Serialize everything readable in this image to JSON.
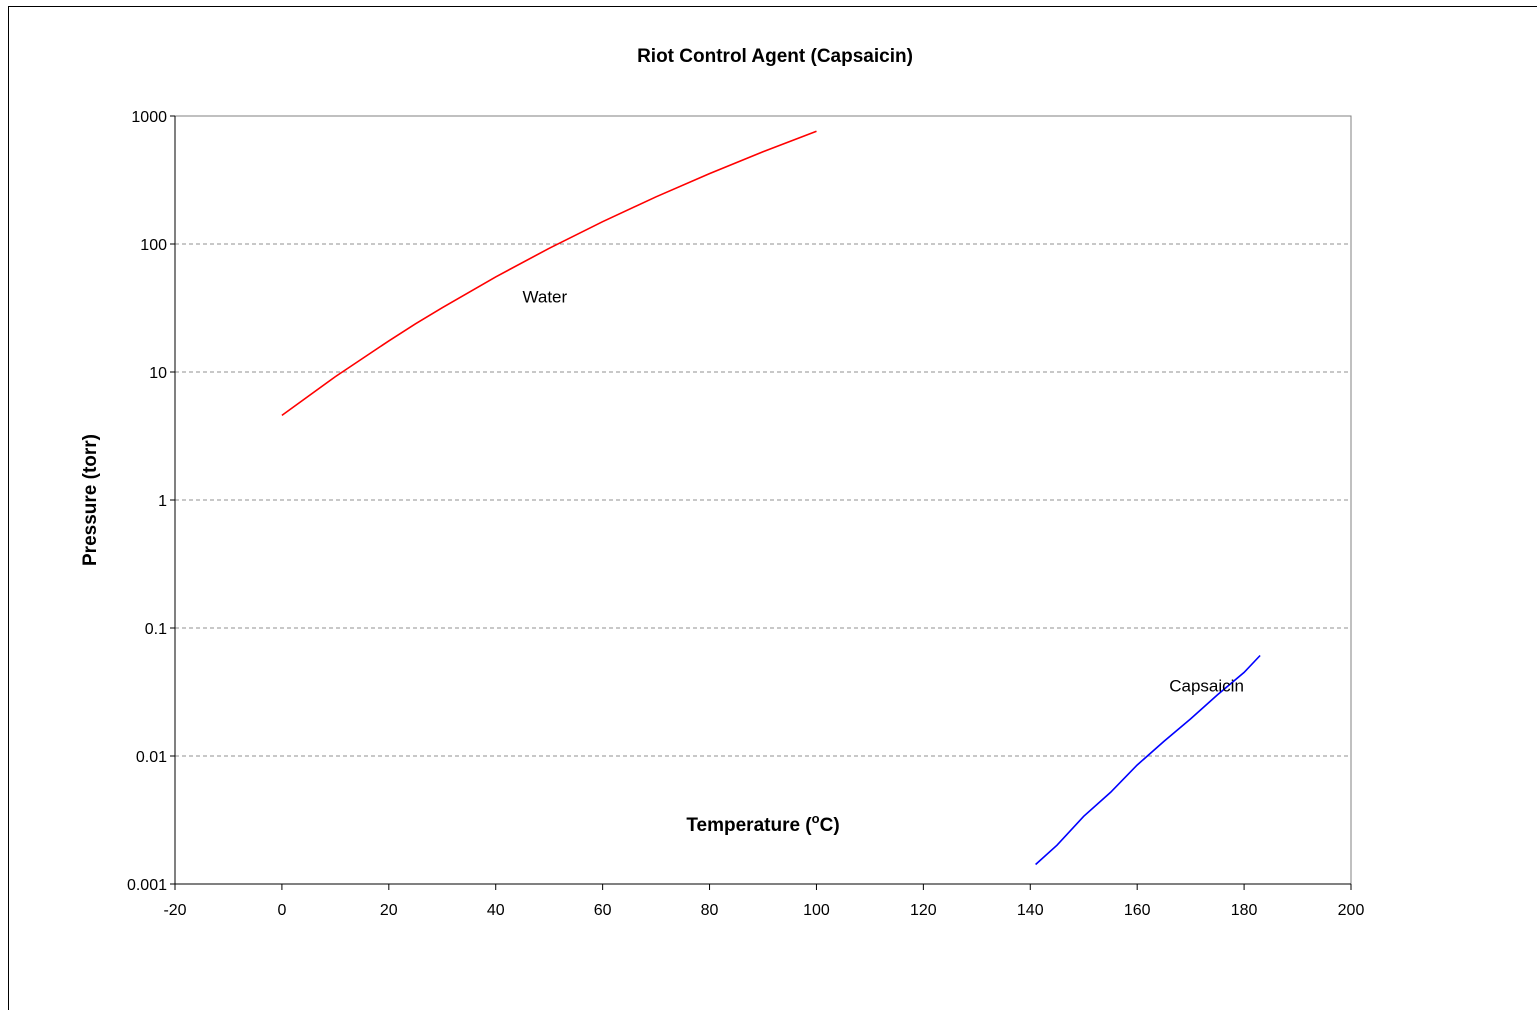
{
  "chart_data": {
    "type": "line",
    "title": "Riot Control Agent (Capsaicin)",
    "xlabel": "Temperature (",
    "xlabel_sup": "o",
    "xlabel_suffix": "C)",
    "ylabel": "Pressure (torr)",
    "xlim": [
      -20,
      200
    ],
    "ylim": [
      0.001,
      1000
    ],
    "y_scale": "log",
    "x_ticks": [
      -20,
      0,
      20,
      40,
      60,
      80,
      100,
      120,
      140,
      160,
      180,
      200
    ],
    "x_tick_labels": [
      "-20",
      "0",
      "20",
      "40",
      "60",
      "80",
      "100",
      "120",
      "140",
      "160",
      "180",
      "200"
    ],
    "y_ticks": [
      0.001,
      0.01,
      0.1,
      1,
      10,
      100,
      1000
    ],
    "y_tick_labels": [
      "0.001",
      "0.01",
      "0.1",
      "1",
      "10",
      "100",
      "1000"
    ],
    "grid": "horizontal dashed",
    "series": [
      {
        "name": "Water",
        "color": "#ff0000",
        "x": [
          0,
          10,
          20,
          25,
          30,
          40,
          50,
          60,
          70,
          80,
          90,
          100
        ],
        "y": [
          4.58,
          9.2,
          17.5,
          23.8,
          31.8,
          55.3,
          92.5,
          149.4,
          233.7,
          355.1,
          525.8,
          760
        ]
      },
      {
        "name": "Capsaicin",
        "color": "#0000ff",
        "x": [
          141,
          145,
          150,
          155,
          160,
          165,
          170,
          175,
          180,
          183
        ],
        "y": [
          0.00142,
          0.00201,
          0.00338,
          0.0052,
          0.0085,
          0.013,
          0.0195,
          0.03,
          0.045,
          0.061
        ]
      }
    ],
    "annotations": [
      {
        "text": "Water",
        "x": 45,
        "y": 35
      },
      {
        "text": "Capsaicin",
        "x": 166,
        "y": 0.032
      }
    ]
  }
}
